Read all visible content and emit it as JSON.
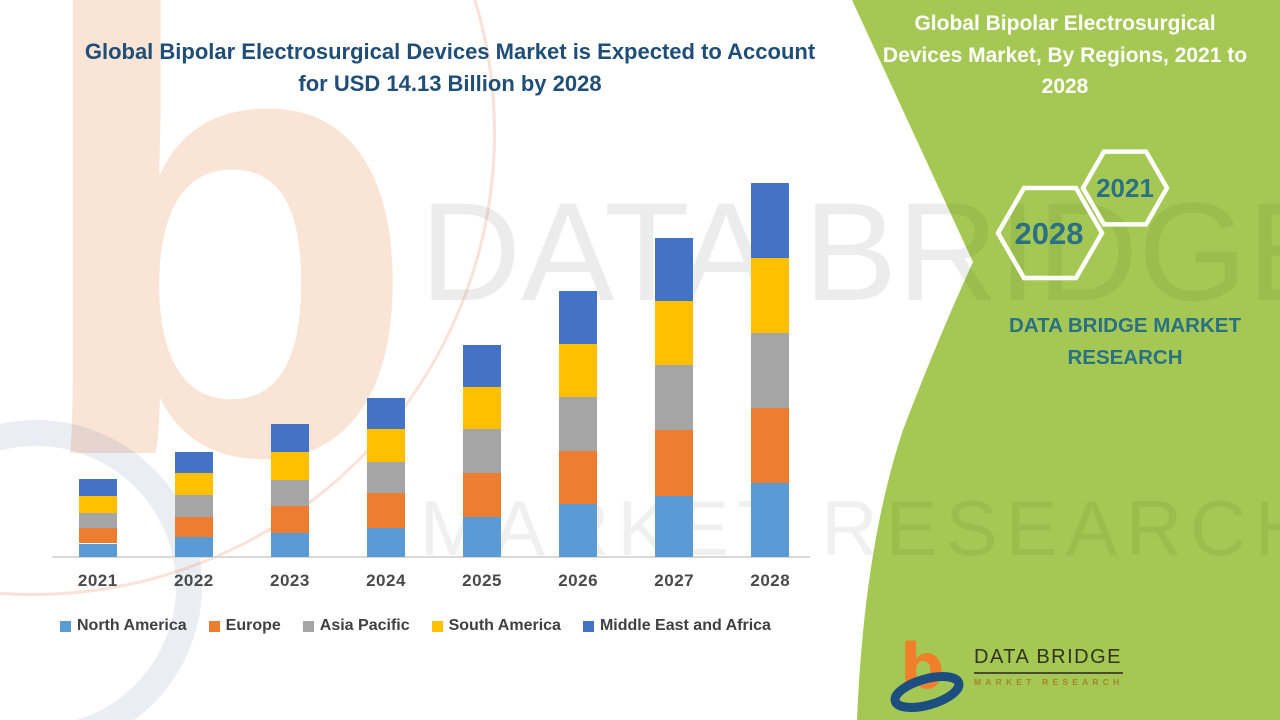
{
  "header": {
    "title": "Global Bipolar Electrosurgical Devices Market is Expected to Account for USD 14.13 Billion by 2028"
  },
  "side_panel": {
    "title": "Global Bipolar Electrosurgical Devices Market, By Regions, 2021 to 2028",
    "hexagons": [
      {
        "label": "2021"
      },
      {
        "label": "2028"
      }
    ],
    "brand_text": "DATA BRIDGE MARKET RESEARCH",
    "colors": {
      "panel_green": "#a4c853",
      "teal_text": "#2a7183"
    }
  },
  "watermark": {
    "line1": "DATA BRIDGE",
    "line2": "MARKET RESEARCH",
    "letter_b": "b"
  },
  "logo": {
    "name": "DATA BRIDGE",
    "subtitle": "MARKET RESEARCH"
  },
  "chart_data": {
    "type": "bar",
    "stacked": true,
    "title": "Global Bipolar Electrosurgical Devices Market is Expected to Account for USD 14.13 Billion by 2028",
    "unit": "USD Billion",
    "categories": [
      "2021",
      "2022",
      "2023",
      "2024",
      "2025",
      "2026",
      "2027",
      "2028"
    ],
    "series": [
      {
        "name": "North America",
        "color": "#5B9BD5",
        "values": [
          0.51,
          0.74,
          0.9,
          1.11,
          1.52,
          2.0,
          2.32,
          2.78
        ]
      },
      {
        "name": "Europe",
        "color": "#ED7D31",
        "values": [
          0.59,
          0.78,
          1.04,
          1.3,
          1.64,
          2.01,
          2.48,
          2.86
        ]
      },
      {
        "name": "Asia Pacific",
        "color": "#A5A5A5",
        "values": [
          0.55,
          0.82,
          0.97,
          1.19,
          1.66,
          2.04,
          2.46,
          2.83
        ]
      },
      {
        "name": "South America",
        "color": "#FFC000",
        "values": [
          0.65,
          0.84,
          1.07,
          1.22,
          1.59,
          1.98,
          2.43,
          2.83
        ]
      },
      {
        "name": "Middle East and Africa",
        "color": "#4472C4",
        "values": [
          0.63,
          0.78,
          1.05,
          1.19,
          1.61,
          2.03,
          2.36,
          2.83
        ]
      }
    ],
    "totals": [
      2.93,
      3.96,
      5.03,
      6.01,
      8.02,
      10.06,
      12.05,
      14.13
    ],
    "xlabel": "",
    "ylabel": "",
    "y_axis_visible": false,
    "grid": false,
    "legend_position": "bottom"
  }
}
